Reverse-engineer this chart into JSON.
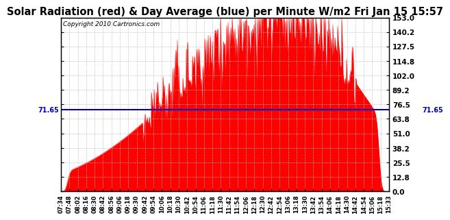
{
  "title": "Solar Radiation (red) & Day Average (blue) per Minute W/m2 Fri Jan 15 15:57",
  "copyright": "Copyright 2010 Cartronics.com",
  "avg_line_y": 71.65,
  "avg_label": "71.65",
  "ymin": 0.0,
  "ymax": 153.0,
  "yticks": [
    0.0,
    12.8,
    25.5,
    38.2,
    51.0,
    63.8,
    76.5,
    89.2,
    102.0,
    114.8,
    127.5,
    140.2,
    153.0
  ],
  "ytick_labels_right": [
    "0.0",
    "12.8",
    "25.5",
    "38.2",
    "51.0",
    "63.8",
    "76.5",
    "89.2",
    "102.0",
    "114.8",
    "127.5",
    "140.2",
    "153.0"
  ],
  "area_color": "#FF0000",
  "line_color": "#0000BB",
  "bg_color": "#FFFFFF",
  "grid_color": "#BBBBBB",
  "title_fontsize": 10.5,
  "xtick_labels": [
    "07:34",
    "07:48",
    "08:02",
    "08:16",
    "08:30",
    "08:42",
    "08:56",
    "09:06",
    "09:18",
    "09:30",
    "09:42",
    "09:54",
    "10:06",
    "10:18",
    "10:30",
    "10:42",
    "10:54",
    "11:06",
    "11:18",
    "11:30",
    "11:42",
    "11:54",
    "12:06",
    "12:18",
    "12:30",
    "12:42",
    "12:54",
    "13:06",
    "13:18",
    "13:30",
    "13:42",
    "13:54",
    "14:06",
    "14:18",
    "14:30",
    "14:42",
    "14:54",
    "15:06",
    "15:18",
    "15:33"
  ]
}
